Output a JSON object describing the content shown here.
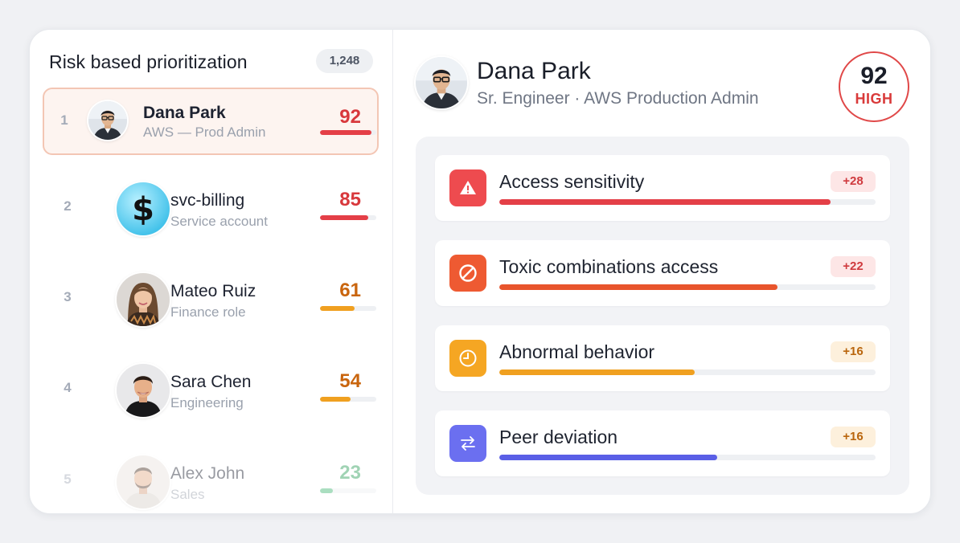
{
  "list": {
    "title": "Risk based prioritization",
    "count": "1,248",
    "items": [
      {
        "rank": "1",
        "name": "Dana Park",
        "role": "AWS — Prod Admin",
        "score": "92",
        "fill": 0.92,
        "color": "#d8383c",
        "bar": "#e43f47",
        "avatar": "man-glasses"
      },
      {
        "rank": "2",
        "name": "svc-billing",
        "role": "Service account",
        "score": "85",
        "fill": 0.85,
        "color": "#d8383c",
        "bar": "#e43f47",
        "avatar": "dollar-icon"
      },
      {
        "rank": "3",
        "name": "Mateo Ruiz",
        "role": "Finance role",
        "score": "61",
        "fill": 0.61,
        "color": "#c9650e",
        "bar": "#f0a020",
        "avatar": "woman-curly"
      },
      {
        "rank": "4",
        "name": "Sara Chen",
        "role": "Engineering",
        "score": "54",
        "fill": 0.54,
        "color": "#c9650e",
        "bar": "#f0a020",
        "avatar": "man-smiling"
      },
      {
        "rank": "5",
        "name": "Alex John",
        "role": "Sales",
        "score": "23",
        "fill": 0.23,
        "color": "#2e9e5b",
        "bar": "#44b874",
        "avatar": "man-beard"
      }
    ]
  },
  "profile": {
    "name": "Dana Park",
    "subtitle": "Sr. Engineer · AWS Production Admin",
    "score": "92",
    "level": "HIGH"
  },
  "factors": [
    {
      "label": "Access sensitivity",
      "delta": "+28",
      "fill": 0.88,
      "icon": "warning-icon",
      "icon_bg": "#ee4b4f",
      "bar": "#e43f47",
      "delta_bg": "#fde6e6",
      "delta_color": "#cf3a3e"
    },
    {
      "label": "Toxic combinations access",
      "delta": "+22",
      "fill": 0.74,
      "icon": "blocked-icon",
      "icon_bg": "#ee5a32",
      "bar": "#e8542c",
      "delta_bg": "#fde6e6",
      "delta_color": "#cf3a3e"
    },
    {
      "label": "Abnormal behavior",
      "delta": "+16",
      "fill": 0.52,
      "icon": "clock-icon",
      "icon_bg": "#f5a623",
      "bar": "#f0a020",
      "delta_bg": "#fdf0dc",
      "delta_color": "#b9650c"
    },
    {
      "label": "Peer deviation",
      "delta": "+16",
      "fill": 0.58,
      "icon": "swap-arrows-icon",
      "icon_bg": "#6b6ff0",
      "bar": "#5a5fe6",
      "delta_bg": "#fdf0dc",
      "delta_color": "#b9650c"
    }
  ]
}
